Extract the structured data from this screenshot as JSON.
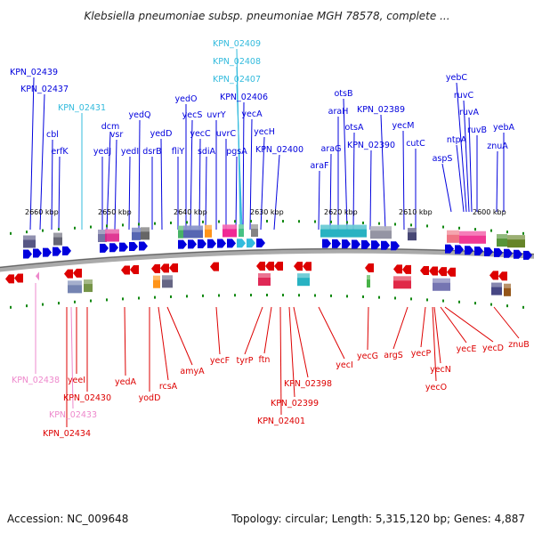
{
  "title": "Klebsiella pneumoniae subsp. pneumoniae MGH 78578, complete ...",
  "footer": {
    "accession": "Accession: NC_009648",
    "stats": "Topology: circular; Length: 5,315,120 bp; Genes: 4,887"
  },
  "colors": {
    "forward": "#0000dd",
    "reverse": "#dd0000",
    "highlight_forward": "#33bbdd",
    "highlight_reverse": "#ee88cc",
    "backbone": "#888888",
    "tick": "#118811"
  },
  "scale": [
    "2660 kbp",
    "2650 kbp",
    "2640 kbp",
    "2630 kbp",
    "2620 kbp",
    "2610 kbp",
    "2600 kbp"
  ],
  "genes_top": [
    {
      "name": "KPN_02439",
      "hl": false
    },
    {
      "name": "KPN_02437",
      "hl": false
    },
    {
      "name": "cbl",
      "hl": false
    },
    {
      "name": "erfK",
      "hl": false
    },
    {
      "name": "KPN_02431",
      "hl": true
    },
    {
      "name": "yedJ",
      "hl": false
    },
    {
      "name": "dcm",
      "hl": false
    },
    {
      "name": "vsr",
      "hl": false
    },
    {
      "name": "yedI",
      "hl": false
    },
    {
      "name": "yedQ",
      "hl": false
    },
    {
      "name": "dsrB",
      "hl": false
    },
    {
      "name": "yedD",
      "hl": false
    },
    {
      "name": "fliY",
      "hl": false
    },
    {
      "name": "yedO",
      "hl": false
    },
    {
      "name": "yecS",
      "hl": false
    },
    {
      "name": "yecC",
      "hl": false
    },
    {
      "name": "sdiA",
      "hl": false
    },
    {
      "name": "uvrY",
      "hl": false
    },
    {
      "name": "uvrC",
      "hl": false
    },
    {
      "name": "pgsA",
      "hl": false
    },
    {
      "name": "KPN_02409",
      "hl": true
    },
    {
      "name": "KPN_02408",
      "hl": true
    },
    {
      "name": "KPN_02407",
      "hl": true
    },
    {
      "name": "KPN_02406",
      "hl": false
    },
    {
      "name": "yecA",
      "hl": false
    },
    {
      "name": "yecH",
      "hl": false
    },
    {
      "name": "KPN_02400",
      "hl": false
    },
    {
      "name": "araF",
      "hl": false
    },
    {
      "name": "araG",
      "hl": false
    },
    {
      "name": "araH",
      "hl": false
    },
    {
      "name": "otsB",
      "hl": false
    },
    {
      "name": "otsA",
      "hl": false
    },
    {
      "name": "KPN_02390",
      "hl": false
    },
    {
      "name": "KPN_02389",
      "hl": false
    },
    {
      "name": "yecM",
      "hl": false
    },
    {
      "name": "cutC",
      "hl": false
    },
    {
      "name": "aspS",
      "hl": false
    },
    {
      "name": "ntpA",
      "hl": false
    },
    {
      "name": "yebC",
      "hl": false
    },
    {
      "name": "ruvC",
      "hl": false
    },
    {
      "name": "ruvA",
      "hl": false
    },
    {
      "name": "ruvB",
      "hl": false
    },
    {
      "name": "znuA",
      "hl": false
    },
    {
      "name": "yebA",
      "hl": false
    }
  ],
  "genes_bottom": [
    {
      "name": "KPN_02438",
      "hl": true
    },
    {
      "name": "KPN_02433",
      "hl": true
    },
    {
      "name": "KPN_02434",
      "hl": false
    },
    {
      "name": "yeeI",
      "hl": false
    },
    {
      "name": "KPN_02430",
      "hl": false
    },
    {
      "name": "yedA",
      "hl": false
    },
    {
      "name": "yodD",
      "hl": false
    },
    {
      "name": "rcsA",
      "hl": false
    },
    {
      "name": "amyA",
      "hl": false
    },
    {
      "name": "yecF",
      "hl": false
    },
    {
      "name": "tyrP",
      "hl": false
    },
    {
      "name": "ftn",
      "hl": false
    },
    {
      "name": "KPN_02398",
      "hl": false
    },
    {
      "name": "KPN_02399",
      "hl": false
    },
    {
      "name": "KPN_02401",
      "hl": false
    },
    {
      "name": "yecI",
      "hl": false
    },
    {
      "name": "yecG",
      "hl": false
    },
    {
      "name": "argS",
      "hl": false
    },
    {
      "name": "yecP",
      "hl": false
    },
    {
      "name": "yecN",
      "hl": false
    },
    {
      "name": "yecO",
      "hl": false
    },
    {
      "name": "yecE",
      "hl": false
    },
    {
      "name": "yecD",
      "hl": false
    },
    {
      "name": "znuB",
      "hl": false
    }
  ]
}
